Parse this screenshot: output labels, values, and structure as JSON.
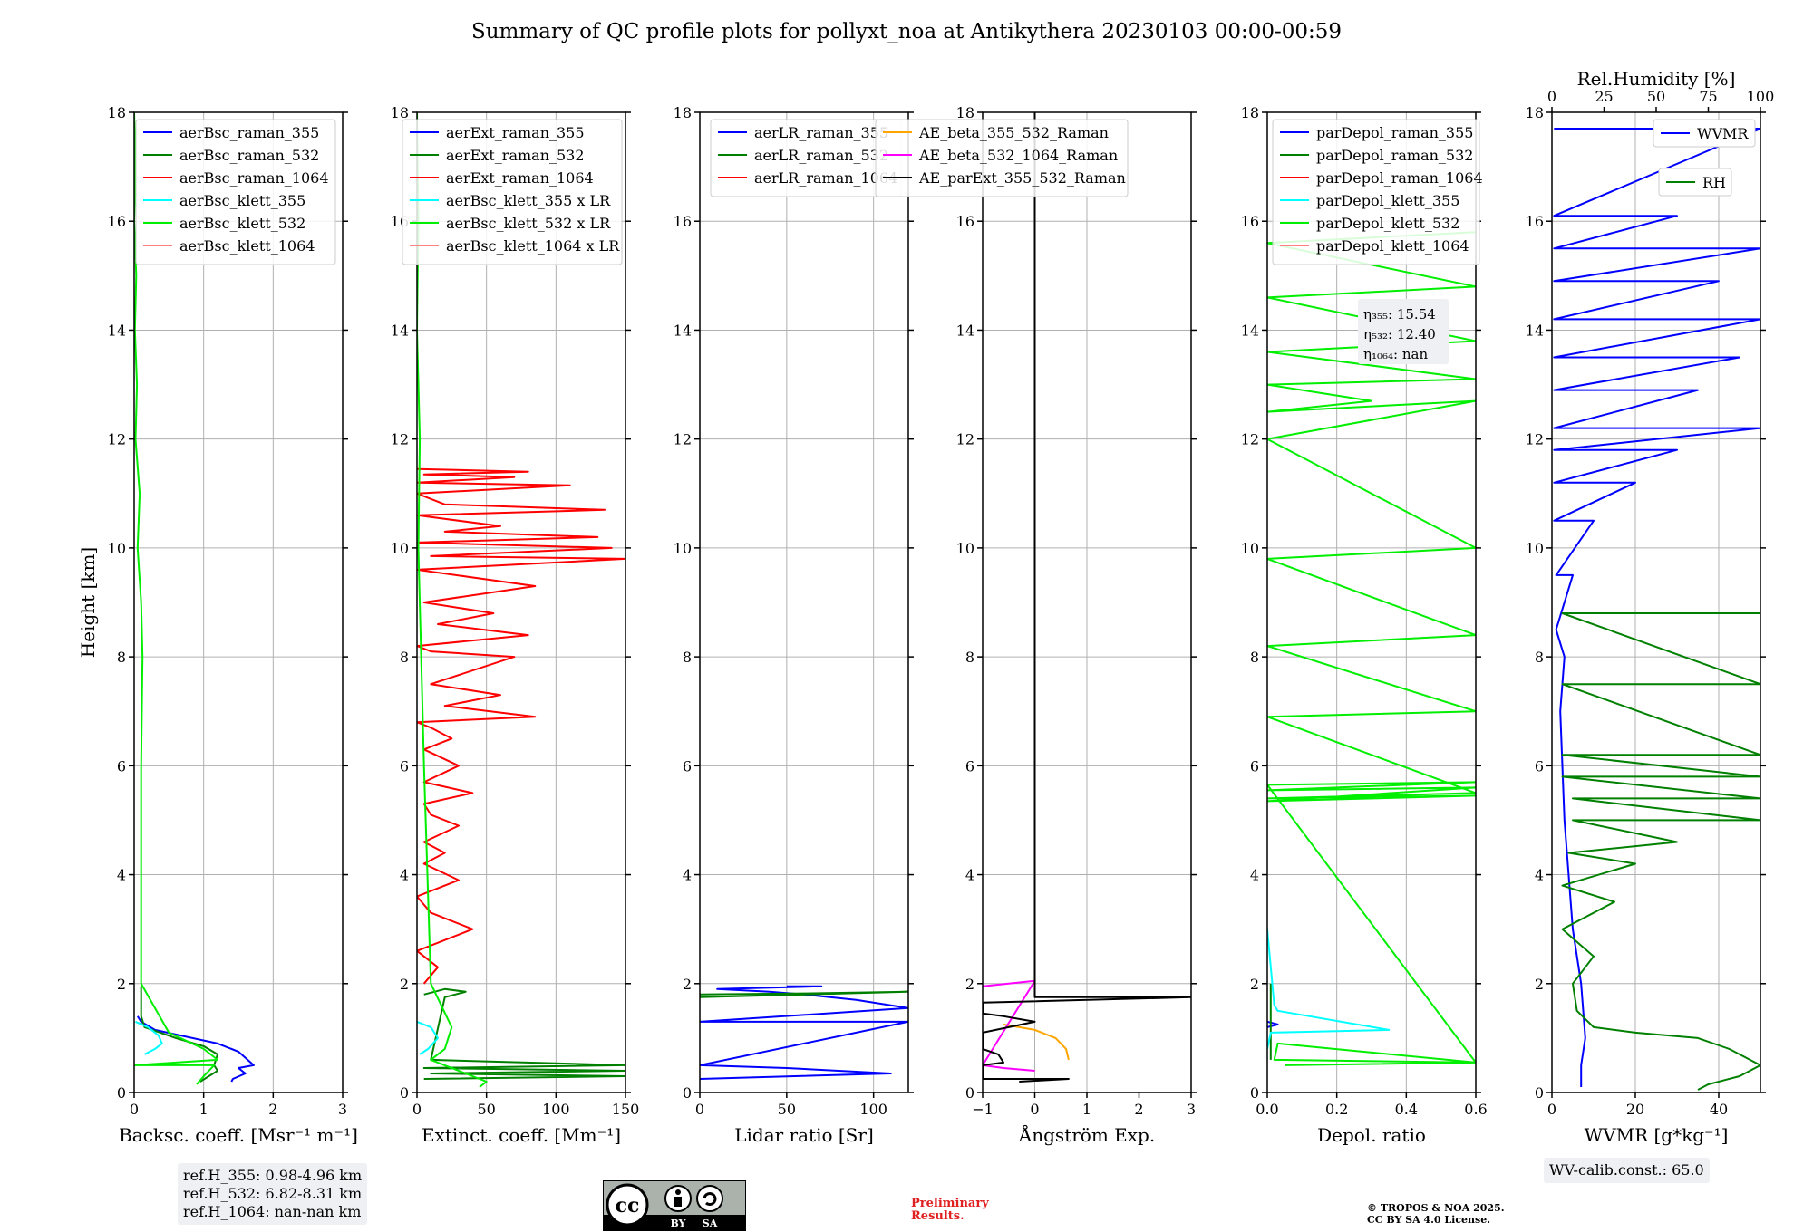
{
  "figure": {
    "title": "Summary of QC profile plots for pollyxt_noa at Antikythera 20230103 00:00-00:59",
    "y_label": "Height [km]",
    "ref_heights": [
      "ref.H_355: 0.98-4.96 km",
      "ref.H_532: 6.82-8.31 km",
      "ref.H_1064: nan-nan km"
    ],
    "wv_calib": "WV-calib.const.: 65.0",
    "preliminary": [
      "Preliminary",
      "Results."
    ],
    "copyright": [
      "© TROPOS & NOA 2025.",
      "CC BY SA 4.0 License."
    ],
    "license_badge": [
      "BY",
      "SA"
    ],
    "colors": {
      "blue": "#0000ff",
      "green": "#008000",
      "red": "#ff0000",
      "cyan": "#00ffff",
      "lime": "#00ee00",
      "salmon": "#ff8080",
      "magenta": "#ff00ff",
      "orange": "#ffa500",
      "black": "#000000"
    }
  },
  "chart_data": [
    {
      "type": "line",
      "panel": "backscatter",
      "xlabel": "Backsc. coeff. [Msr⁻¹ m⁻¹]",
      "ylabel": "Height [km]",
      "xlim": [
        0,
        3
      ],
      "ylim": [
        0,
        18
      ],
      "xticks": [
        0,
        1,
        2,
        3
      ],
      "yticks": [
        0,
        2,
        4,
        6,
        8,
        10,
        12,
        14,
        16,
        18
      ],
      "grid": true,
      "legend": "top-right",
      "series": [
        {
          "name": "aerBsc_raman_355",
          "color": "#0000ff",
          "x": [
            0.05,
            0.1,
            0.3,
            1.2,
            1.5,
            1.72,
            1.5,
            1.6,
            1.42,
            1.4
          ],
          "y": [
            1.4,
            1.3,
            1.15,
            0.9,
            0.75,
            0.5,
            0.45,
            0.35,
            0.25,
            0.2
          ]
        },
        {
          "name": "aerBsc_raman_532",
          "color": "#008000",
          "x": [
            0.1,
            0.1,
            0.15,
            0.6,
            1.0,
            1.2,
            1.15,
            1.2,
            0.95
          ],
          "y": [
            1.95,
            1.4,
            1.2,
            1.0,
            0.85,
            0.7,
            0.5,
            0.4,
            0.2
          ]
        },
        {
          "name": "aerBsc_raman_1064",
          "color": "#ff0000",
          "x": [],
          "y": []
        },
        {
          "name": "aerBsc_klett_355",
          "color": "#00ffff",
          "x": [
            0.02,
            0.2,
            0.35,
            0.4,
            0.3,
            0.15
          ],
          "y": [
            1.3,
            1.2,
            1.05,
            0.9,
            0.8,
            0.7
          ]
        },
        {
          "name": "aerBsc_klett_532",
          "color": "#00ee00",
          "x": [
            0.0,
            0.02,
            0.0,
            0.03,
            0.01,
            0.04,
            0.02,
            0.08,
            0.05,
            0.1,
            0.12,
            0.1,
            0.1,
            0.5,
            1.0,
            1.2,
            0.0,
            1.15,
            1.0,
            0.9
          ],
          "y": [
            18,
            17,
            16,
            15,
            14,
            13,
            12,
            11,
            10,
            9,
            8,
            6,
            2,
            1.1,
            0.8,
            0.6,
            0.5,
            0.5,
            0.3,
            0.15
          ]
        },
        {
          "name": "aerBsc_klett_1064",
          "color": "#ff8080",
          "x": [],
          "y": []
        }
      ]
    },
    {
      "type": "line",
      "panel": "extinction",
      "xlabel": "Extinct. coeff. [Mm⁻¹]",
      "xlim": [
        0,
        150
      ],
      "ylim": [
        0,
        18
      ],
      "xticks": [
        0,
        50,
        100,
        150
      ],
      "yticks": [
        0,
        2,
        4,
        6,
        8,
        10,
        12,
        14,
        16,
        18
      ],
      "grid": true,
      "legend": "top-right",
      "series": [
        {
          "name": "aerExt_raman_355",
          "color": "#0000ff",
          "x": [],
          "y": []
        },
        {
          "name": "aerExt_raman_532",
          "color": "#008000",
          "x": [
            5,
            20,
            35,
            20,
            10,
            150,
            5,
            150,
            10,
            150,
            5
          ],
          "y": [
            1.8,
            1.9,
            1.85,
            1.75,
            0.6,
            0.5,
            0.45,
            0.4,
            0.35,
            0.3,
            0.25
          ]
        },
        {
          "name": "aerExt_raman_1064",
          "color": "#ff0000",
          "x": [
            5,
            15,
            0,
            40,
            10,
            0,
            30,
            5,
            20,
            5,
            30,
            10,
            5,
            40,
            5,
            30,
            5,
            25,
            10,
            0,
            85,
            20,
            60,
            10,
            70,
            10,
            0,
            80,
            15,
            55,
            5,
            85,
            0,
            150,
            10,
            140,
            0,
            130,
            20,
            60,
            0,
            135,
            20,
            0,
            110,
            0,
            70,
            5,
            80,
            0
          ],
          "y": [
            2.0,
            2.3,
            2.6,
            3.0,
            3.3,
            3.6,
            3.9,
            4.2,
            4.4,
            4.6,
            4.9,
            5.1,
            5.3,
            5.5,
            5.7,
            6.0,
            6.3,
            6.5,
            6.7,
            6.8,
            6.9,
            7.1,
            7.3,
            7.5,
            8.0,
            8.1,
            8.2,
            8.4,
            8.6,
            8.8,
            9.0,
            9.3,
            9.6,
            9.8,
            9.85,
            10.0,
            10.1,
            10.2,
            10.3,
            10.4,
            10.6,
            10.7,
            10.8,
            11.0,
            11.15,
            11.2,
            11.3,
            11.35,
            11.4,
            11.45
          ]
        },
        {
          "name": "aerBsc_klett_355 x LR",
          "color": "#00ffff",
          "x": [
            0,
            10,
            15,
            8,
            2
          ],
          "y": [
            1.3,
            1.2,
            1.0,
            0.8,
            0.7
          ]
        },
        {
          "name": "aerBsc_klett_532 x LR",
          "color": "#00ee00",
          "x": [
            0,
            1,
            0,
            2,
            1,
            3,
            5,
            10,
            25,
            20,
            10,
            40,
            50,
            45
          ],
          "y": [
            18,
            16,
            14,
            12,
            10,
            8,
            6,
            2,
            1.2,
            0.8,
            0.6,
            0.3,
            0.2,
            0.1
          ]
        },
        {
          "name": "aerBsc_klett_1064 x LR",
          "color": "#ff8080",
          "x": [],
          "y": []
        }
      ]
    },
    {
      "type": "line",
      "panel": "lidar-ratio",
      "xlabel": "Lidar ratio [Sr]",
      "xlim": [
        0,
        120
      ],
      "ylim": [
        0,
        18
      ],
      "xticks": [
        0,
        50,
        100
      ],
      "yticks": [
        0,
        2,
        4,
        6,
        8,
        10,
        12,
        14,
        16,
        18
      ],
      "grid": true,
      "legend": "top-right",
      "series": [
        {
          "name": "aerLR_raman_355",
          "color": "#0000ff",
          "x": [
            50,
            70,
            10,
            40,
            60,
            90,
            120,
            0,
            120,
            0,
            50,
            110,
            0
          ],
          "y": [
            1.95,
            1.95,
            1.9,
            1.85,
            1.8,
            1.7,
            1.55,
            1.3,
            1.3,
            0.5,
            0.45,
            0.35,
            0.25
          ]
        },
        {
          "name": "aerLR_raman_532",
          "color": "#008000",
          "x": [
            0,
            60,
            120,
            0
          ],
          "y": [
            1.8,
            1.82,
            1.85,
            1.75
          ]
        },
        {
          "name": "aerLR_raman_1064",
          "color": "#ff0000",
          "x": [],
          "y": []
        }
      ]
    },
    {
      "type": "line",
      "panel": "angstrom",
      "xlabel": "Ångström Exp.",
      "xlim": [
        -1,
        3
      ],
      "ylim": [
        0,
        18
      ],
      "xticks": [
        -1,
        0,
        1,
        2,
        3
      ],
      "yticks": [
        0,
        2,
        4,
        6,
        8,
        10,
        12,
        14,
        16,
        18
      ],
      "grid": true,
      "legend": "top-right",
      "series": [
        {
          "name": "AE_beta_355_532_Raman",
          "color": "#ffa500",
          "x": [
            -0.6,
            0.0,
            0.4,
            0.6,
            0.65
          ],
          "y": [
            1.25,
            1.15,
            1.0,
            0.8,
            0.6
          ]
        },
        {
          "name": "AE_beta_532_1064_Raman",
          "color": "#ff00ff",
          "x": [
            -1.0,
            0.0,
            -1.0,
            -0.6,
            0.0
          ],
          "y": [
            1.95,
            2.05,
            0.5,
            0.45,
            0.4
          ]
        },
        {
          "name": "AE_parExt_355_532_Raman",
          "color": "#000000",
          "x": [
            0,
            0,
            3.0,
            -1.0,
            -1.0,
            -0.6,
            0.0,
            -1.0,
            -1.0,
            -0.7,
            -0.6,
            -1.0,
            -1.0,
            0.65,
            -0.3
          ],
          "y": [
            18,
            1.75,
            1.75,
            1.65,
            1.45,
            1.4,
            1.3,
            1.1,
            0.8,
            0.7,
            0.55,
            0.5,
            0.25,
            0.25,
            0.2
          ]
        }
      ]
    },
    {
      "type": "line",
      "panel": "depolarization",
      "xlabel": "Depol. ratio",
      "xlim": [
        0,
        0.6
      ],
      "ylim": [
        0,
        18
      ],
      "xticks": [
        0.0,
        0.2,
        0.4,
        0.6
      ],
      "yticks": [
        0,
        2,
        4,
        6,
        8,
        10,
        12,
        14,
        16,
        18
      ],
      "grid": true,
      "legend": "top-left",
      "annotation": [
        "η₃₅₅: 15.54",
        "η₅₃₂: 12.40",
        "η₁₀₆₄: nan"
      ],
      "series": [
        {
          "name": "parDepol_raman_355",
          "color": "#0000ff",
          "x": [
            0.0,
            0.03,
            0.0
          ],
          "y": [
            1.3,
            1.25,
            1.2
          ]
        },
        {
          "name": "parDepol_raman_532",
          "color": "#008000",
          "x": [
            0.01,
            0.01
          ],
          "y": [
            2.0,
            0.6
          ]
        },
        {
          "name": "parDepol_raman_1064",
          "color": "#ff0000",
          "x": [],
          "y": []
        },
        {
          "name": "parDepol_klett_355",
          "color": "#00ffff",
          "x": [
            0.0,
            0.02,
            0.03,
            0.35,
            0.01,
            0.0
          ],
          "y": [
            3.0,
            1.6,
            1.5,
            1.15,
            1.1,
            0.8
          ]
        },
        {
          "name": "parDepol_klett_532",
          "color": "#00ee00",
          "x": [
            0.6,
            0.0,
            0.6,
            0.0,
            0.6,
            0.0,
            0.6,
            0.0,
            0.3,
            0.0,
            0.6,
            0.0,
            0.6,
            0.0,
            0.6,
            0.0,
            0.6,
            0.0,
            0.6,
            0.0,
            0.6,
            0.0,
            0.6,
            0.0,
            0.6,
            0.0,
            0.6,
            0.02,
            0.03,
            0.6,
            0.05
          ],
          "y": [
            15.8,
            15.6,
            14.8,
            14.6,
            13.8,
            13.6,
            13.1,
            13.0,
            12.7,
            12.5,
            12.7,
            12.0,
            10.0,
            9.8,
            8.4,
            8.2,
            7.0,
            6.9,
            5.5,
            5.4,
            5.45,
            5.35,
            5.6,
            5.55,
            5.7,
            5.65,
            0.55,
            0.6,
            0.9,
            0.55,
            0.5
          ]
        },
        {
          "name": "parDepol_klett_1064",
          "color": "#ff8080",
          "x": [],
          "y": []
        }
      ]
    },
    {
      "type": "line",
      "panel": "water-vapor",
      "xlabel": "WVMR [g*kg⁻¹]",
      "x2label": "Rel.Humidity [%]",
      "xlim": [
        0,
        50
      ],
      "x2lim": [
        0,
        100
      ],
      "ylim": [
        0,
        18
      ],
      "xticks": [
        0,
        20,
        40
      ],
      "x2ticks": [
        0,
        25,
        50,
        75,
        100
      ],
      "yticks": [
        0,
        2,
        4,
        6,
        8,
        10,
        12,
        14,
        16,
        18
      ],
      "grid": true,
      "legend": "top-right",
      "series": [
        {
          "name": "WVMR",
          "color": "#0000ff",
          "axis": "x",
          "x": [
            0.5,
            50,
            0.5,
            30,
            0.5,
            50,
            0.5,
            40,
            0.5,
            50,
            0.5,
            45,
            0.5,
            35,
            0.5,
            50,
            0.5,
            30,
            0.5,
            20,
            0.5,
            10,
            1,
            5,
            1,
            3,
            2,
            3,
            5,
            7,
            8,
            7,
            7
          ],
          "y": [
            17.7,
            17.7,
            16.1,
            16.1,
            15.5,
            15.5,
            14.9,
            14.9,
            14.2,
            14.2,
            13.5,
            13.5,
            12.9,
            12.9,
            12.2,
            12.2,
            11.8,
            11.8,
            11.2,
            11.2,
            10.5,
            10.5,
            9.5,
            9.5,
            8.5,
            8.0,
            7.0,
            5.0,
            3.0,
            2.0,
            1.0,
            0.5,
            0.1
          ]
        },
        {
          "name": "RH",
          "color": "#008000",
          "axis": "x2",
          "x": [
            100,
            5,
            100,
            5,
            100,
            5,
            100,
            5,
            100,
            10,
            100,
            10,
            60,
            8,
            40,
            5,
            30,
            5,
            20,
            10,
            12,
            20,
            40,
            70,
            85,
            95,
            100,
            90,
            75,
            70
          ],
          "y": [
            8.8,
            8.8,
            7.5,
            7.5,
            6.2,
            6.2,
            5.8,
            5.8,
            5.4,
            5.4,
            5.0,
            5.0,
            4.6,
            4.4,
            4.2,
            3.8,
            3.5,
            3.0,
            2.5,
            2.0,
            1.5,
            1.2,
            1.1,
            1.0,
            0.8,
            0.6,
            0.5,
            0.3,
            0.15,
            0.05
          ]
        }
      ]
    }
  ]
}
